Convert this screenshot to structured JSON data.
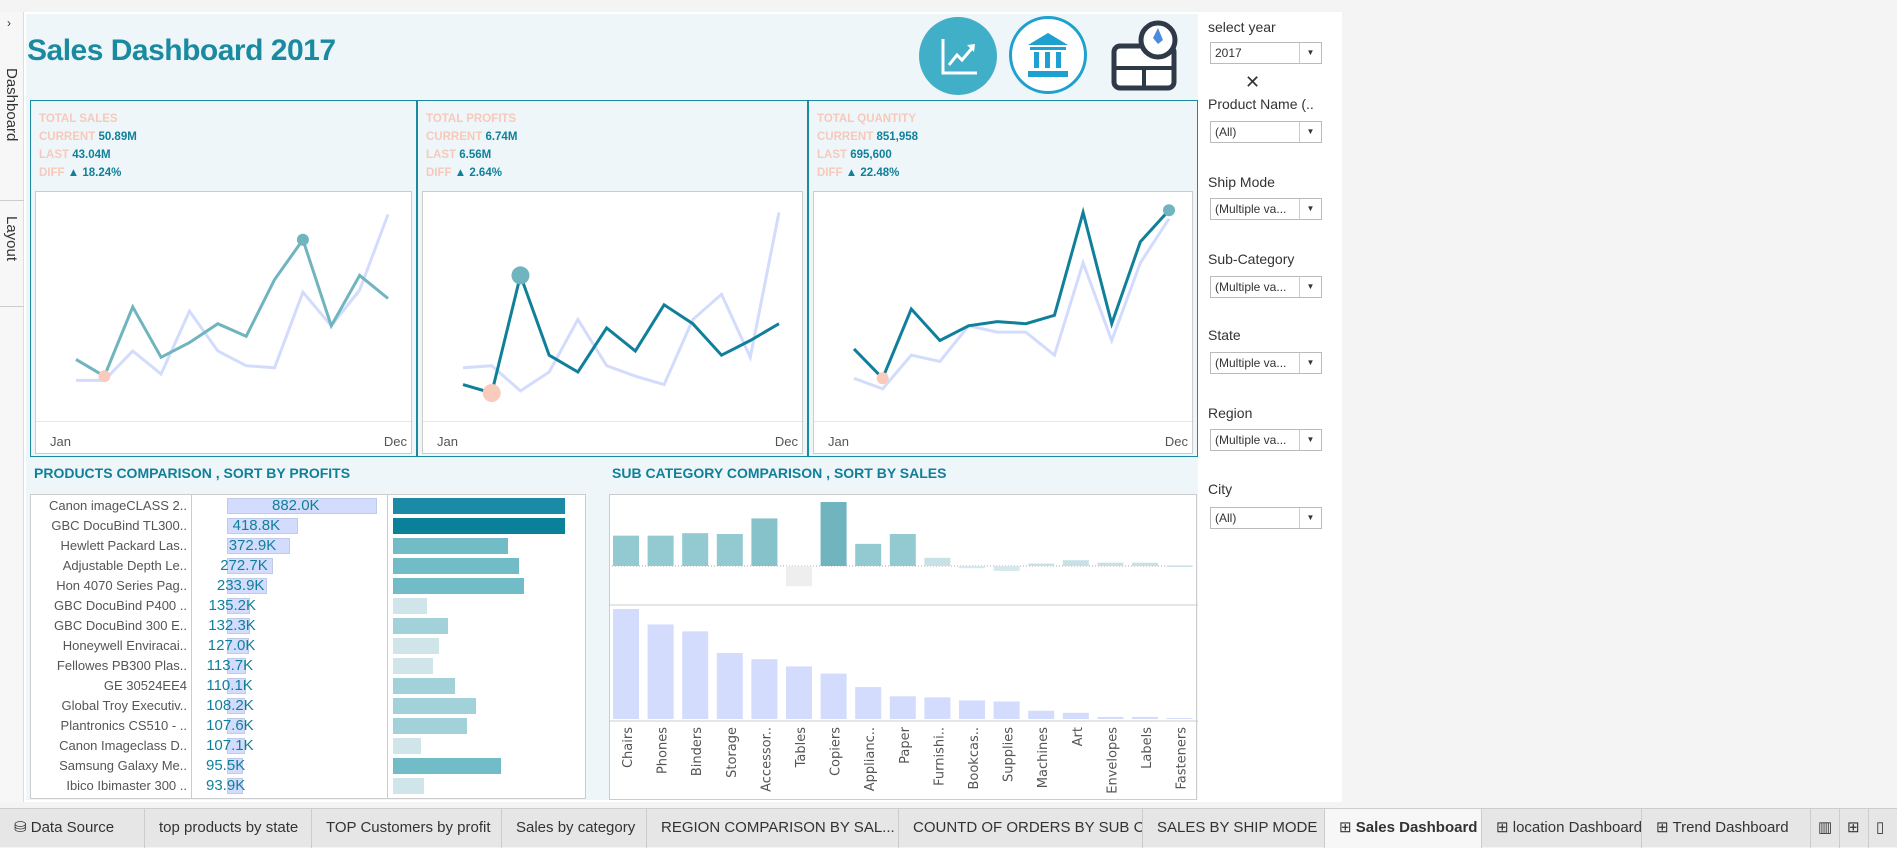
{
  "sidebar": {
    "expand_icon": "chevron-right-icon",
    "tabs": [
      "Dashboard",
      "Layout"
    ]
  },
  "header": {
    "title": "Sales Dashboard 2017",
    "icons": [
      "trend-chart-icon",
      "bank-icon",
      "map-compass-icon"
    ]
  },
  "colors": {
    "accent": "#1a8aa0",
    "current_line": "#10809a",
    "last_line": "#d3dcfc",
    "min_dot": "#f9cbbd",
    "max_dot": "#6fb4be",
    "peach_label": "#f7c9bb"
  },
  "kpis": [
    {
      "title": "TOTAL SALES",
      "current_label": "CURRENT",
      "current": "50.89M",
      "last_label": "LAST",
      "last": "43.04M",
      "diff_label": "DIFF",
      "diff": "▲ 18.24%",
      "x_start": "Jan",
      "x_end": "Dec",
      "current_series": [
        26,
        18,
        51,
        27,
        34,
        43,
        37,
        64,
        83,
        42,
        66,
        55
      ],
      "last_series": [
        16,
        16,
        30,
        19,
        49,
        30,
        23,
        22,
        58,
        42,
        59,
        95
      ],
      "min_index": 1,
      "max_index": 8,
      "line_color": "#6fb4be"
    },
    {
      "title": "TOTAL PROFITS",
      "current_label": "CURRENT",
      "current": "6.74M",
      "last_label": "LAST",
      "last": "6.56M",
      "diff_label": "DIFF",
      "diff": "▲ 2.64%",
      "x_start": "Jan",
      "x_end": "Dec",
      "current_series": [
        14,
        10,
        66,
        28,
        20,
        41,
        30,
        52,
        43,
        28,
        35,
        43
      ],
      "last_series": [
        22,
        23,
        11,
        20,
        45,
        23,
        18,
        14,
        45,
        57,
        27,
        96
      ],
      "min_index": 1,
      "max_index": 2,
      "line_color": "#10809a"
    },
    {
      "title": "TOTAL QUANTITY",
      "current_label": "CURRENT",
      "current": "851,958",
      "last_label": "LAST",
      "last": "695,600",
      "diff_label": "DIFF",
      "diff": "▲ 22.48%",
      "x_start": "Jan",
      "x_end": "Dec",
      "current_series": [
        31,
        17,
        50,
        35,
        42,
        44,
        43,
        47,
        96,
        43,
        82,
        97
      ],
      "last_series": [
        17,
        12,
        28,
        25,
        42,
        39,
        39,
        28,
        72,
        35,
        72,
        93
      ],
      "min_index": 1,
      "max_index": 11,
      "line_color": "#10809a"
    }
  ],
  "products": {
    "title": "PRODUCTS COMPARISON , SORT BY PROFITS",
    "rows": [
      {
        "name": "Canon imageCLASS 2..",
        "value": "882.0K",
        "v": 882.0,
        "bar": 100
      },
      {
        "name": "GBC DocuBind TL300..",
        "value": "418.8K",
        "v": 418.8,
        "bar": 100
      },
      {
        "name": "Hewlett Packard Las..",
        "value": "372.9K",
        "v": 372.9,
        "bar": 67
      },
      {
        "name": "Adjustable Depth Le..",
        "value": "272.7K",
        "v": 272.7,
        "bar": 73
      },
      {
        "name": "Hon 4070 Series Pag..",
        "value": "233.9K",
        "v": 233.9,
        "bar": 76
      },
      {
        "name": "GBC DocuBind P400 ..",
        "value": "135.2K",
        "v": 135.2,
        "bar": 20
      },
      {
        "name": "GBC DocuBind 300 E..",
        "value": "132.3K",
        "v": 132.3,
        "bar": 32
      },
      {
        "name": "Honeywell Enviracai..",
        "value": "127.0K",
        "v": 127.0,
        "bar": 27
      },
      {
        "name": "Fellowes PB300 Plas..",
        "value": "113.7K",
        "v": 113.7,
        "bar": 23
      },
      {
        "name": "GE 30524EE4",
        "value": "110.1K",
        "v": 110.1,
        "bar": 36
      },
      {
        "name": "Global Troy Executiv..",
        "value": "108.2K",
        "v": 108.2,
        "bar": 48
      },
      {
        "name": "Plantronics CS510 - ..",
        "value": "107.6K",
        "v": 107.6,
        "bar": 43
      },
      {
        "name": "Canon Imageclass D..",
        "value": "107.1K",
        "v": 107.1,
        "bar": 16
      },
      {
        "name": "Samsung Galaxy Me..",
        "value": "95.5K",
        "v": 95.5,
        "bar": 63
      },
      {
        "name": "Ibico Ibimaster 300 ..",
        "value": "93.9K",
        "v": 93.9,
        "bar": 18
      }
    ]
  },
  "chart_data": {
    "type": "bar",
    "title": "SUB CATEGORY COMPARISON , SORT BY SALES",
    "categories": [
      "Chairs",
      "Phones",
      "Binders",
      "Storage",
      "Accessor..",
      "Tables",
      "Copiers",
      "Applianc..",
      "Paper",
      "Furnishi..",
      "Bookcas..",
      "Supplies",
      "Machines",
      "Art",
      "Envelopes",
      "Labels",
      "Fasteners"
    ],
    "series": [
      {
        "values": [
          111,
          111,
          120,
          117,
          174,
          -74,
          234,
          81,
          117,
          30,
          -8,
          -18,
          9,
          21,
          12,
          12,
          2
        ]
      },
      {
        "values": [
          320,
          275,
          255,
          192,
          174,
          153,
          132,
          93,
          66,
          63,
          54,
          51,
          24,
          18,
          6,
          6,
          3
        ]
      }
    ]
  },
  "filters": [
    {
      "label": "select year",
      "value": "2017"
    },
    {
      "label": "Product Name (..",
      "value": "(All)"
    },
    {
      "label": "Ship Mode",
      "value": "(Multiple va..."
    },
    {
      "label": "Sub-Category",
      "value": "(Multiple va..."
    },
    {
      "label": "State",
      "value": "(Multiple va..."
    },
    {
      "label": "Region",
      "value": "(Multiple va..."
    },
    {
      "label": "City",
      "value": "(All)"
    }
  ],
  "tabs": [
    "Data Source",
    "top products by state",
    "TOP Customers by profit",
    "Sales by category",
    "REGION COMPARISON BY SAL...",
    "COUNTD OF ORDERS BY SUB C...",
    "SALES BY SHIP MODE",
    "Sales Dashboard",
    "location Dashboard",
    "Trend Dashboard"
  ],
  "active_tab": "Sales Dashboard"
}
